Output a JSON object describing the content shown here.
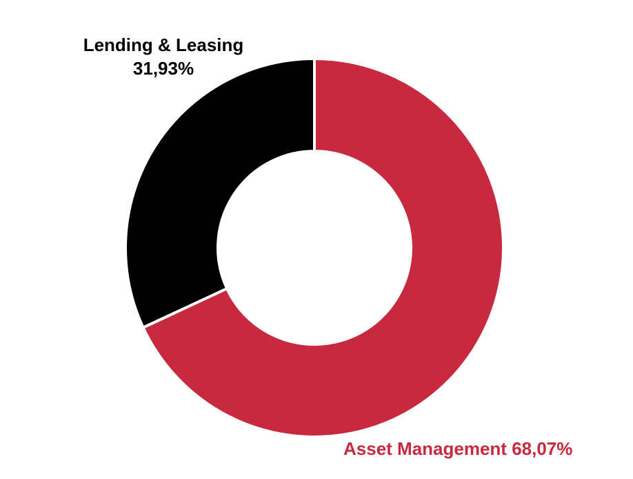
{
  "chart_data": {
    "type": "donut",
    "categories": [
      "Asset Management",
      "Lending & Leasing"
    ],
    "values": [
      68.07,
      31.93
    ],
    "value_labels": [
      "68,07%",
      "31,93%"
    ],
    "colors": [
      "#c8293e",
      "#000000"
    ]
  }
}
